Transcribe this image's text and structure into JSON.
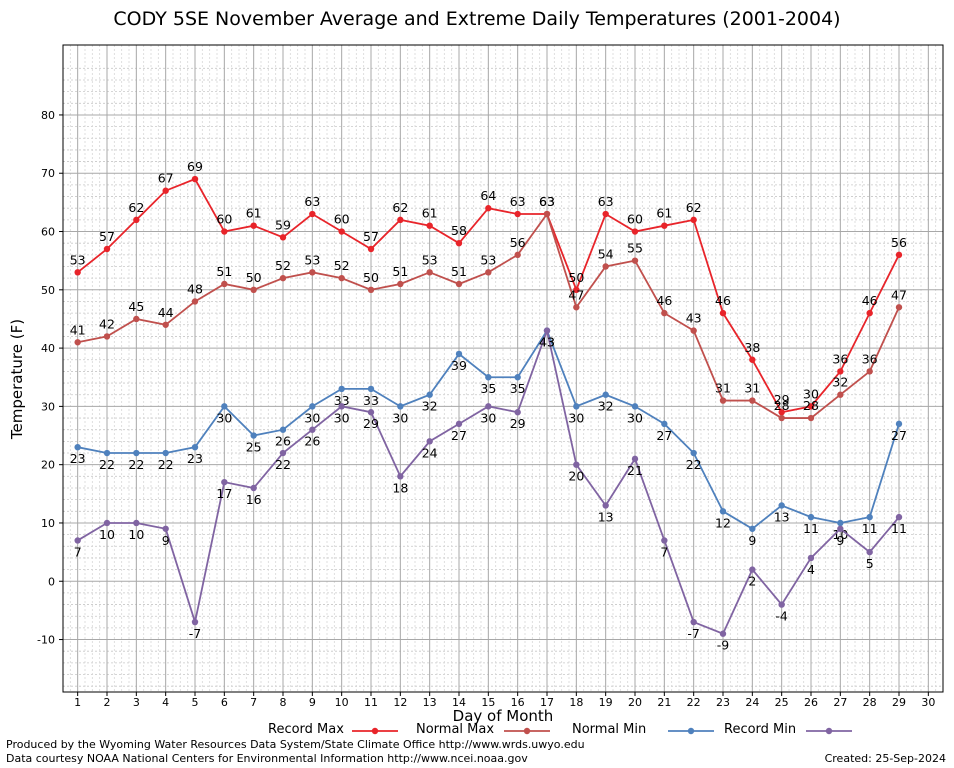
{
  "title": "CODY 5SE November Average and Extreme Daily Temperatures (2001-2004)",
  "footer": {
    "produced": "Produced by the Wyoming Water Resources Data System/State Climate Office http://www.wrds.uwyo.edu",
    "courtesy": "Data courtesy NOAA National Centers for Environmental Information http://www.ncei.noaa.gov",
    "created": "Created:  25-Sep-2024"
  },
  "colors": {
    "record_max": "#e8242a",
    "normal_max": "#c0504d",
    "normal_min": "#4f81bd",
    "record_min": "#8064a2"
  },
  "chart_data": {
    "type": "line",
    "xlabel": "Day of Month",
    "ylabel": "Temperature (F)",
    "xlim": [
      0.5,
      30.5
    ],
    "ylim": [
      -19,
      92
    ],
    "x_ticks": [
      1,
      2,
      3,
      4,
      5,
      6,
      7,
      8,
      9,
      10,
      11,
      12,
      13,
      14,
      15,
      16,
      17,
      18,
      19,
      20,
      21,
      22,
      23,
      24,
      25,
      26,
      27,
      28,
      29,
      30
    ],
    "y_ticks": [
      -10,
      0,
      10,
      20,
      30,
      40,
      50,
      60,
      70,
      80
    ],
    "grid": true,
    "legend_position": "bottom",
    "x": [
      1,
      2,
      3,
      4,
      5,
      6,
      7,
      8,
      9,
      10,
      11,
      12,
      13,
      14,
      15,
      16,
      17,
      18,
      19,
      20,
      21,
      22,
      23,
      24,
      25,
      26,
      27,
      28,
      29
    ],
    "series": [
      {
        "name": "Record Max",
        "color_key": "record_max",
        "label_position": "above",
        "values": [
          53,
          57,
          62,
          67,
          69,
          60,
          61,
          59,
          63,
          60,
          57,
          62,
          61,
          58,
          64,
          63,
          63,
          50,
          63,
          60,
          61,
          62,
          46,
          38,
          29,
          30,
          36,
          46,
          56
        ]
      },
      {
        "name": "Normal Max",
        "color_key": "normal_max",
        "label_position": "above",
        "values": [
          41,
          42,
          45,
          44,
          48,
          51,
          50,
          52,
          53,
          52,
          50,
          51,
          53,
          51,
          53,
          56,
          63,
          47,
          54,
          55,
          46,
          43,
          31,
          31,
          28,
          28,
          32,
          36,
          47
        ]
      },
      {
        "name": "Normal Min",
        "color_key": "normal_min",
        "label_position": "below",
        "values": [
          23,
          22,
          22,
          22,
          23,
          30,
          25,
          26,
          30,
          33,
          33,
          30,
          32,
          39,
          35,
          35,
          43,
          30,
          32,
          30,
          27,
          22,
          12,
          9,
          13,
          11,
          10,
          11,
          27
        ]
      },
      {
        "name": "Record Min",
        "color_key": "record_min",
        "label_position": "below",
        "values": [
          7,
          10,
          10,
          9,
          -7,
          17,
          16,
          22,
          26,
          30,
          29,
          18,
          24,
          27,
          30,
          29,
          43,
          20,
          13,
          21,
          7,
          -7,
          -9,
          2,
          -4,
          4,
          9,
          5,
          11
        ]
      }
    ]
  }
}
